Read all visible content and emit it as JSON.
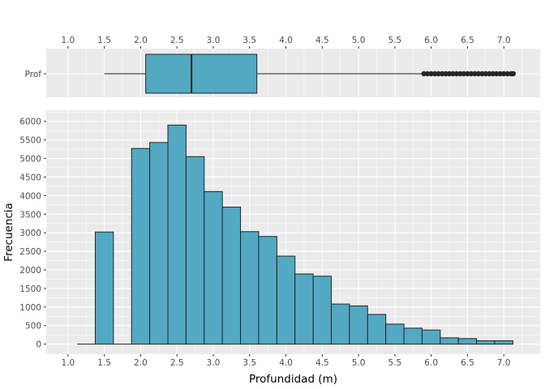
{
  "colors": {
    "panel": "#ebebeb",
    "grid_major": "#ffffff",
    "bar_fill": "#52a9c1",
    "outline": "#262626",
    "tick_text": "#4d4d4d"
  },
  "chart_data": [
    {
      "type": "boxplot",
      "orientation": "horizontal",
      "category_label": "Prof",
      "x_ticks": [
        "1.0",
        "1.5",
        "2.0",
        "2.5",
        "3.0",
        "3.5",
        "4.0",
        "4.5",
        "5.0",
        "5.5",
        "6.0",
        "6.5",
        "7.0"
      ],
      "xlim": [
        0.7,
        7.5
      ],
      "axis_position": "top",
      "whisker_low": 1.5,
      "q1": 2.07,
      "median": 2.7,
      "q3": 3.6,
      "whisker_high": 5.88,
      "outliers": [
        5.9,
        5.95,
        6.0,
        6.05,
        6.1,
        6.15,
        6.2,
        6.25,
        6.3,
        6.35,
        6.4,
        6.45,
        6.5,
        6.55,
        6.6,
        6.65,
        6.7,
        6.75,
        6.8,
        6.85,
        6.9,
        6.95,
        7.0,
        7.05,
        7.1,
        7.13
      ]
    },
    {
      "type": "bar",
      "subtype": "histogram",
      "xlabel": "Profundidad (m)",
      "ylabel": "Frecuencia",
      "bin_width": 0.25,
      "x": [
        1.25,
        1.5,
        1.75,
        2.0,
        2.25,
        2.5,
        2.75,
        3.0,
        3.25,
        3.5,
        3.75,
        4.0,
        4.25,
        4.5,
        4.75,
        5.0,
        5.25,
        5.5,
        5.75,
        6.0,
        6.25,
        6.5,
        6.75,
        7.0
      ],
      "values": [
        0,
        3020,
        0,
        5270,
        5430,
        5900,
        5050,
        4110,
        3690,
        3030,
        2900,
        2370,
        1890,
        1830,
        1080,
        1030,
        800,
        540,
        430,
        380,
        170,
        150,
        90,
        90
      ],
      "x_ticks": [
        "1.0",
        "1.5",
        "2.0",
        "2.5",
        "3.0",
        "3.5",
        "4.0",
        "4.5",
        "5.0",
        "5.5",
        "6.0",
        "6.5",
        "7.0"
      ],
      "y_ticks": [
        "0",
        "500",
        "1000",
        "1500",
        "2000",
        "2500",
        "3000",
        "3500",
        "4000",
        "4500",
        "5000",
        "5500",
        "6000"
      ],
      "xlim": [
        0.7,
        7.5
      ],
      "ylim": [
        -270,
        6300
      ],
      "grid": true,
      "legend": "none"
    }
  ]
}
